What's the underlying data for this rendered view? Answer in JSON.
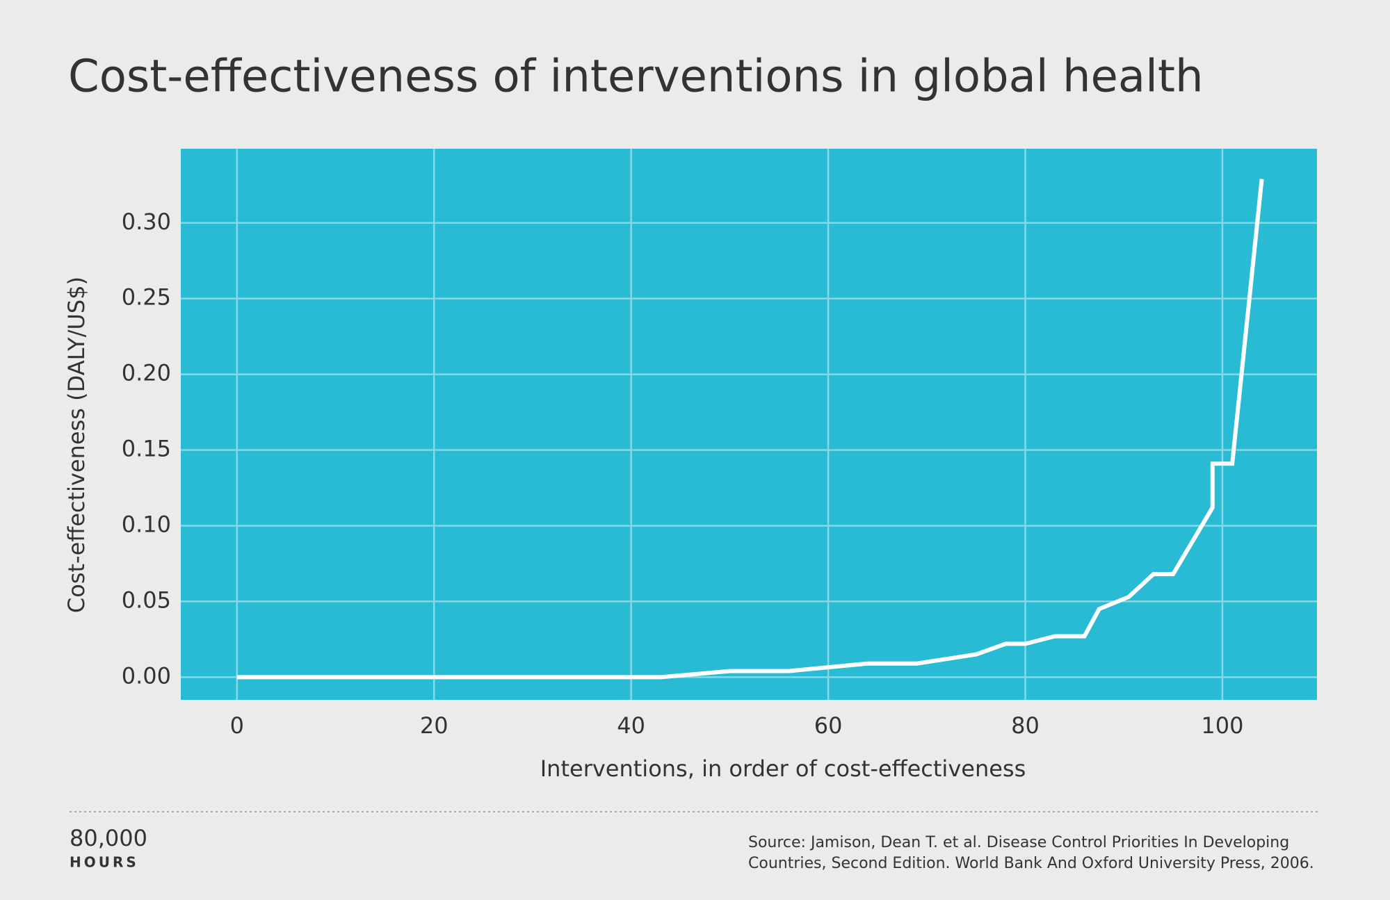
{
  "chart_data": {
    "type": "line",
    "title": "Cost-effectiveness of interventions in global health",
    "ylabel": "Cost-effectiveness (DALY/US$)",
    "xlabel": "Interventions, in order of cost-effectiveness",
    "x": [
      0,
      43,
      50,
      56,
      64,
      69,
      75,
      78,
      80,
      83,
      86,
      87.5,
      90.5,
      93,
      95,
      99,
      99,
      101,
      104
    ],
    "values": [
      0,
      0,
      0.004,
      0.004,
      0.009,
      0.009,
      0.015,
      0.022,
      0.022,
      0.027,
      0.027,
      0.045,
      0.053,
      0.068,
      0.068,
      0.112,
      0.141,
      0.141,
      0.329
    ],
    "color": "#ffffff",
    "background": "#29bbd3",
    "grid": true,
    "xlim": [
      -5.7,
      109.6
    ],
    "ylim": [
      -0.015,
      0.349
    ],
    "xticks": [
      0,
      20,
      40,
      60,
      80,
      100
    ],
    "yticks": [
      {
        "value": 0,
        "label": "0.00"
      },
      0.05,
      {
        "value": 0.1,
        "label": "0.10"
      },
      0.15,
      {
        "value": 0.2,
        "label": "0.20"
      },
      0.25,
      {
        "value": 0.3,
        "label": "0.30"
      }
    ],
    "logo": [
      "80,000",
      "HOURS"
    ],
    "source": [
      "Source: Jamison, Dean T. et al. Disease Control Priorities In Developing",
      "Countries, Second Edition. World Bank And Oxford University Press, 2006."
    ]
  }
}
